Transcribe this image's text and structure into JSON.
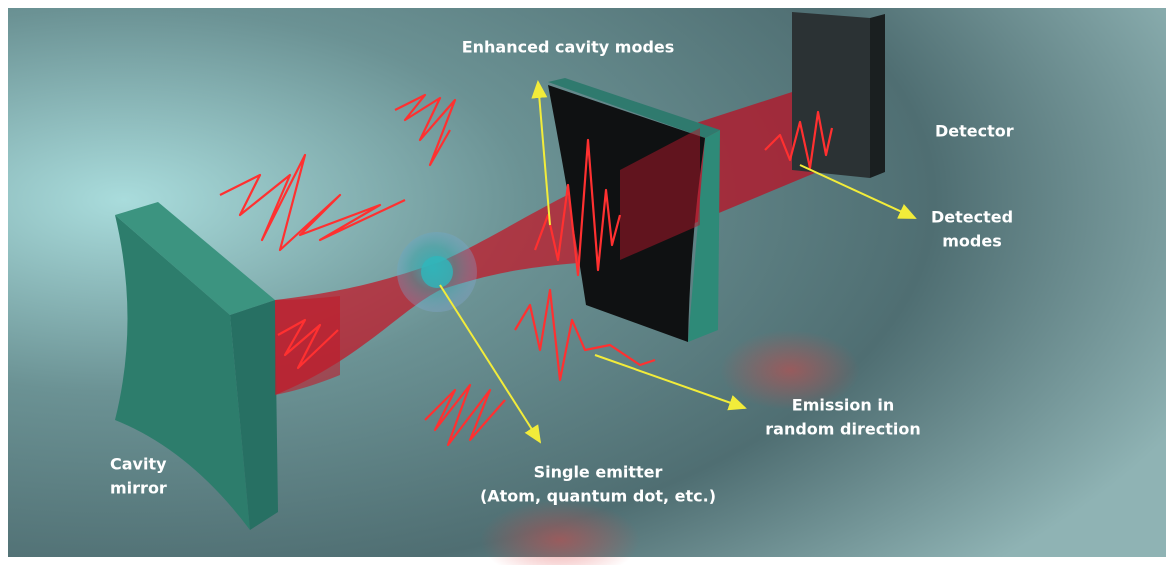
{
  "labels": [
    {
      "lines": [
        "Enhanced cavity modes"
      ]
    },
    {
      "lines": [
        "Detector"
      ]
    },
    {
      "lines": [
        "Detected",
        "modes"
      ]
    },
    {
      "lines": [
        "Emission in",
        "random direction"
      ]
    },
    {
      "lines": [
        "Single emitter",
        "(Atom, quantum dot, etc.)"
      ]
    },
    {
      "lines": [
        "Cavity",
        "mirror"
      ]
    }
  ]
}
